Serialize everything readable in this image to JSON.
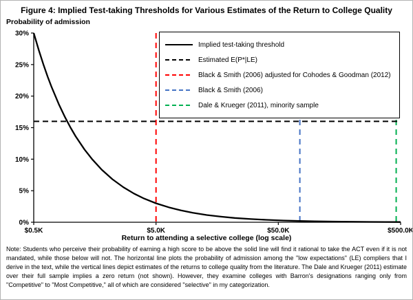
{
  "figure": {
    "title": "Figure 4: Implied Test-taking Thresholds for Various Estimates of the Return to College Quality",
    "y_axis_label": "Probability of admission",
    "x_axis_label": "Return to attending a selective college (log scale)",
    "note": "Note: Students who perceive their probability of earning a high score to be above the solid line will find it rational to take the ACT even if it is not mandated, while those below will not. The horizontal line plots the probability of admission among the \"low expectations\" (LE) compliers that I derive in the text, while the vertical lines depict estimates of the returns to college quality from the literature. The Dale and Krueger (2011) estimate over their full sample implies a zero return (not shown). However, they examine colleges with Barron's designations ranging only from \"Competitive\" to \"Most Competitive,\" all of which are considered \"selective\" in my categorization."
  },
  "chart_data": {
    "type": "line",
    "title": "Figure 4: Implied Test-taking Thresholds for Various Estimates of the Return to College Quality",
    "xlabel": "Return to attending a selective college (log scale)",
    "ylabel": "Probability of admission",
    "x_scale": "log",
    "x_range_k": [
      0.5,
      500
    ],
    "y_range_pct": [
      0,
      30
    ],
    "grid": false,
    "legend_position": "upper right, boxed",
    "x_ticks": [
      {
        "value": 0.5,
        "label": "$0.5K"
      },
      {
        "value": 5,
        "label": "$5.0K"
      },
      {
        "value": 50,
        "label": "$50.0K"
      },
      {
        "value": 500,
        "label": "$500.0K"
      }
    ],
    "y_ticks": [
      {
        "value": 0,
        "label": "0%"
      },
      {
        "value": 5,
        "label": "5%"
      },
      {
        "value": 10,
        "label": "10%"
      },
      {
        "value": 15,
        "label": "15%"
      },
      {
        "value": 20,
        "label": "20%"
      },
      {
        "value": 25,
        "label": "25%"
      },
      {
        "value": 30,
        "label": "30%"
      }
    ],
    "series": [
      {
        "name": "Implied test-taking threshold",
        "style": "solid",
        "color": "#000000",
        "points": [
          [
            0.5,
            30
          ],
          [
            0.55,
            27.27
          ],
          [
            0.6,
            25
          ],
          [
            0.65,
            23.08
          ],
          [
            0.7,
            21.43
          ],
          [
            0.8,
            18.75
          ],
          [
            0.9,
            16.67
          ],
          [
            1,
            15
          ],
          [
            1.1,
            13.64
          ],
          [
            1.3,
            11.54
          ],
          [
            1.5,
            10
          ],
          [
            1.8,
            8.33
          ],
          [
            2.2,
            6.82
          ],
          [
            2.7,
            5.56
          ],
          [
            3.3,
            4.55
          ],
          [
            4,
            3.75
          ],
          [
            5,
            3
          ],
          [
            6.5,
            2.31
          ],
          [
            8,
            1.88
          ],
          [
            10,
            1.5
          ],
          [
            13,
            1.15
          ],
          [
            17,
            0.88
          ],
          [
            22,
            0.68
          ],
          [
            30,
            0.5
          ],
          [
            40,
            0.38
          ],
          [
            55,
            0.27
          ],
          [
            75,
            0.2
          ],
          [
            100,
            0.15
          ],
          [
            140,
            0.11
          ],
          [
            200,
            0.075
          ],
          [
            280,
            0.054
          ],
          [
            380,
            0.039
          ],
          [
            500,
            0.03
          ]
        ]
      }
    ],
    "horizontal_line": {
      "name": "Estimated E(P*|LE)",
      "y": 16,
      "style": "dashed",
      "color": "#000000"
    },
    "vertical_lines": [
      {
        "name": "Black & Smith (2006) adjusted for Cohodes & Goodman (2012)",
        "x": 5,
        "style": "dashed",
        "color": "#FF0000"
      },
      {
        "name": "Black & Smith (2006)",
        "x": 75,
        "style": "dashed",
        "color": "#4472C4"
      },
      {
        "name": "Dale & Krueger (2011), minority sample",
        "x": 460,
        "style": "dashed",
        "color": "#00B050"
      }
    ],
    "legend": [
      {
        "label": "Implied test-taking threshold",
        "style": "solid",
        "color": "#000000"
      },
      {
        "label": "Estimated E(P*|LE)",
        "style": "dashed",
        "color": "#000000"
      },
      {
        "label": "Black & Smith (2006) adjusted for Cohodes & Goodman (2012)",
        "style": "dashed",
        "color": "#FF0000"
      },
      {
        "label": "Black & Smith (2006)",
        "style": "dashed",
        "color": "#4472C4"
      },
      {
        "label": "Dale & Krueger (2011), minority sample",
        "style": "dashed",
        "color": "#00B050"
      }
    ]
  }
}
